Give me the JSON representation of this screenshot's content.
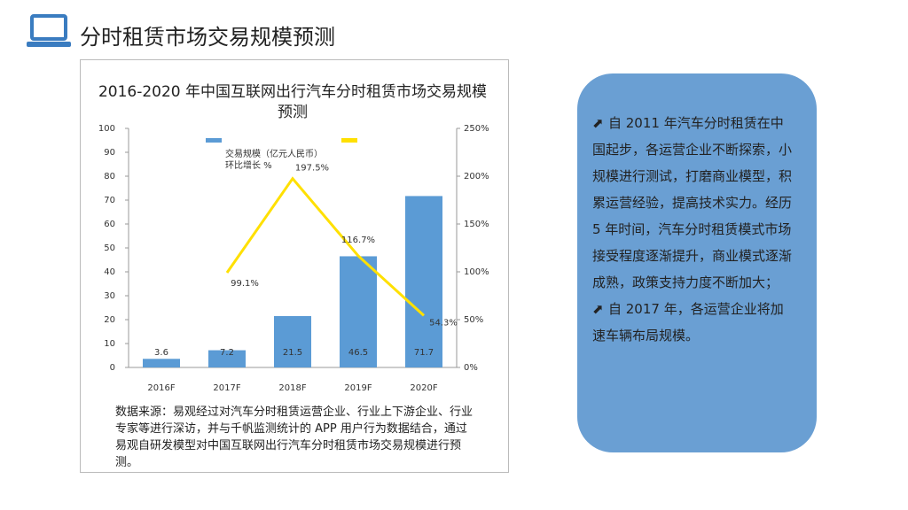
{
  "header": {
    "title": "分时租赁市场交易规模预测"
  },
  "chart_data": {
    "type": "bar_line",
    "title": "2016-2020 年中国互联网出行汽车分时租赁市场交易规模预测",
    "categories": [
      "2016F",
      "2017F",
      "2018F",
      "2019F",
      "2020F"
    ],
    "series": [
      {
        "name": "交易规模（亿元人民币）",
        "color": "#5b9bd5",
        "type": "bar",
        "values": [
          3.6,
          7.2,
          21.5,
          46.5,
          71.7
        ]
      },
      {
        "name": "环比增长 %",
        "color": "#ffe000",
        "type": "line",
        "axis": "y2",
        "values": [
          null,
          99.1,
          197.5,
          116.7,
          54.3
        ],
        "value_labels": [
          null,
          "99.1%",
          "197.5%",
          "116.7%",
          "54.3%"
        ]
      }
    ],
    "ylim": [
      0,
      100
    ],
    "yticks": [
      0,
      10,
      20,
      30,
      40,
      50,
      60,
      70,
      80,
      90,
      100
    ],
    "y2lim": [
      0,
      250
    ],
    "y2ticks": [
      {
        "value": 0,
        "label": "0%"
      },
      {
        "value": 50,
        "label": "50%"
      },
      {
        "value": 100,
        "label": "100%"
      },
      {
        "value": 150,
        "label": "150%"
      },
      {
        "value": 200,
        "label": "200%"
      },
      {
        "value": 250,
        "label": "250%"
      }
    ],
    "grid": false
  },
  "source": "数据来源：易观经过对汽车分时租赁运营企业、行业上下游企业、行业专家等进行深访，并与千帆监测统计的 APP 用户行为数据结合，通过易观自研发模型对中国互联网出行汽车分时租赁市场交易规模进行预测。",
  "panel": {
    "paragraphs": [
      "自 2011 年汽车分时租赁在中国起步，各运营企业不断探索，小规模进行测试，打磨商业模型，积累运营经验，提高技术实力。经历 5 年时间，汽车分时租赁模式市场接受程度逐渐提升，商业模式逐渐成熟，政策支持力度不断加大；",
      "自 2017 年，各运营企业将加速车辆布局规模。"
    ]
  }
}
